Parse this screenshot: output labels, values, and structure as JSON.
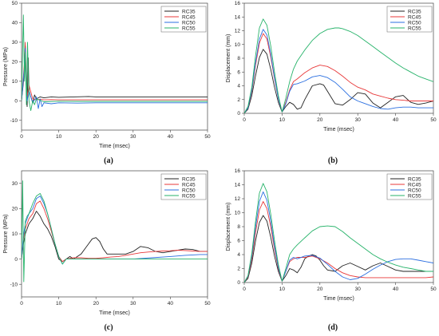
{
  "colors": {
    "RC35": "#222222",
    "RC45": "#e8393a",
    "RC50": "#2b6fe0",
    "RC55": "#27b36a"
  },
  "chart_data": [
    {
      "panel_label": "(a)",
      "type": "line",
      "xlabel": "Time (msec)",
      "ylabel": "Pressure (MPa)",
      "xlim": [
        0,
        50
      ],
      "ylim": [
        -15,
        50
      ],
      "xticks": [
        0,
        10,
        20,
        30,
        40,
        50
      ],
      "yticks": [
        -10,
        0,
        10,
        20,
        30,
        40,
        50
      ],
      "legend": "top-right",
      "grid": false,
      "series": [
        {
          "name": "RC35",
          "x": [
            0,
            0.8,
            1.0,
            1.2,
            1.5,
            1.8,
            2.0,
            2.5,
            3,
            3.5,
            4,
            5,
            6,
            8,
            10,
            14,
            18,
            20,
            30,
            40,
            50
          ],
          "y": [
            0,
            15,
            28,
            12,
            -3,
            22,
            5,
            2,
            -1,
            3,
            1,
            2,
            1.5,
            2,
            1.8,
            2,
            2.2,
            2,
            2,
            2,
            2
          ]
        },
        {
          "name": "RC45",
          "x": [
            0,
            0.8,
            1.0,
            1.2,
            1.5,
            2,
            3,
            4,
            5,
            6,
            8,
            10,
            15,
            20,
            30,
            40,
            50
          ],
          "y": [
            0,
            20,
            30,
            14,
            2,
            8,
            1,
            0.5,
            0.8,
            0.5,
            0.6,
            0.5,
            0.5,
            0.5,
            0.5,
            0.5,
            0.5
          ]
        },
        {
          "name": "RC50",
          "x": [
            0,
            0.8,
            1.0,
            1.2,
            1.5,
            2,
            3,
            4,
            4.5,
            5,
            5.5,
            6,
            8,
            10,
            15,
            20,
            30,
            40,
            50
          ],
          "y": [
            0,
            18,
            27,
            10,
            0,
            5,
            -1,
            2,
            -4,
            1,
            -3,
            -1,
            -1.5,
            -1,
            -1.2,
            -1,
            -1,
            -1,
            -1
          ]
        },
        {
          "name": "RC55",
          "x": [
            0,
            0.5,
            0.8,
            1.0,
            1.3,
            1.6,
            2,
            2.5,
            3,
            3.5,
            4,
            6,
            10,
            15,
            20,
            30,
            40,
            50
          ],
          "y": [
            0,
            44,
            10,
            25,
            -2,
            30,
            0,
            -5,
            0,
            -2,
            1,
            -0.5,
            -0.2,
            -0.3,
            -0.3,
            -0.3,
            -0.3,
            -0.3
          ]
        }
      ]
    },
    {
      "panel_label": "(b)",
      "type": "line",
      "xlabel": "Time (msec)",
      "ylabel": "Displacement (mm)",
      "xlim": [
        0,
        50
      ],
      "ylim": [
        0,
        16
      ],
      "xticks": [
        0,
        10,
        20,
        30,
        40,
        50
      ],
      "yticks": [
        0,
        2,
        4,
        6,
        8,
        10,
        12,
        14,
        16
      ],
      "legend": "top-right",
      "grid": false,
      "series": [
        {
          "name": "RC35",
          "x": [
            0,
            1,
            2,
            3,
            4,
            5,
            6,
            7,
            8,
            9,
            10,
            11,
            12,
            13,
            14,
            15,
            16,
            18,
            20,
            21,
            22,
            24,
            26,
            28,
            30,
            32,
            34,
            36,
            38,
            40,
            42,
            44,
            46,
            48,
            50
          ],
          "y": [
            0,
            0.6,
            2.6,
            5.5,
            8.1,
            9.3,
            8.6,
            6.4,
            3.8,
            1.6,
            0.2,
            1.0,
            1.6,
            1.3,
            0.6,
            0.8,
            2.0,
            4.0,
            4.3,
            4.1,
            3.2,
            1.4,
            1.2,
            2.0,
            3.0,
            2.8,
            1.5,
            0.8,
            1.6,
            2.4,
            2.6,
            1.6,
            1.3,
            1.5,
            1.8
          ]
        },
        {
          "name": "RC45",
          "x": [
            0,
            1,
            2,
            3,
            4,
            5,
            6,
            7,
            8,
            9,
            10,
            11,
            12,
            13,
            14,
            16,
            18,
            20,
            22,
            24,
            26,
            28,
            30,
            32,
            34,
            36,
            38,
            40,
            42,
            44,
            46,
            48,
            50
          ],
          "y": [
            0,
            0.8,
            3.2,
            7.0,
            10.2,
            11.6,
            10.8,
            8.2,
            5.0,
            2.2,
            0.2,
            1.6,
            3.4,
            4.6,
            5.0,
            5.9,
            6.6,
            7.0,
            6.8,
            6.2,
            5.4,
            4.5,
            3.8,
            3.4,
            2.8,
            2.5,
            2.2,
            2.0,
            1.9,
            1.8,
            1.8,
            1.8,
            1.8
          ]
        },
        {
          "name": "RC50",
          "x": [
            0,
            1,
            2,
            3,
            4,
            5,
            6,
            7,
            8,
            9,
            10,
            11,
            12,
            13,
            14,
            16,
            18,
            20,
            22,
            24,
            26,
            28,
            30,
            32,
            34,
            36,
            38,
            40,
            42,
            44,
            46,
            48,
            50
          ],
          "y": [
            0,
            0.8,
            3.4,
            7.4,
            10.8,
            12.2,
            11.4,
            8.6,
            5.2,
            2.2,
            0.2,
            1.4,
            3.2,
            4.2,
            4.3,
            4.7,
            5.3,
            5.5,
            5.2,
            4.5,
            3.5,
            2.4,
            1.8,
            1.4,
            1.0,
            0.7,
            0.6,
            0.8,
            0.9,
            0.9,
            0.8,
            0.8,
            0.8
          ]
        },
        {
          "name": "RC55",
          "x": [
            0,
            1,
            2,
            3,
            4,
            5,
            6,
            7,
            8,
            9,
            10,
            11,
            12,
            13,
            14,
            16,
            18,
            20,
            22,
            24,
            25,
            26,
            28,
            30,
            32,
            34,
            36,
            38,
            40,
            42,
            44,
            46,
            48,
            50
          ],
          "y": [
            0,
            1.0,
            3.8,
            8.4,
            12.4,
            13.7,
            12.8,
            9.8,
            6.0,
            2.6,
            0.2,
            2.2,
            4.6,
            6.4,
            7.6,
            9.2,
            10.6,
            11.6,
            12.2,
            12.4,
            12.4,
            12.3,
            11.9,
            11.3,
            10.5,
            9.7,
            8.9,
            8.1,
            7.3,
            6.6,
            6.0,
            5.4,
            5.0,
            4.6
          ]
        }
      ]
    },
    {
      "panel_label": "(c)",
      "type": "line",
      "xlabel": "Time (msec)",
      "ylabel": "Pressure (MPa)",
      "xlim": [
        0,
        50
      ],
      "ylim": [
        -15,
        35
      ],
      "xticks": [
        0,
        10,
        20,
        30,
        40,
        50
      ],
      "yticks": [
        -10,
        0,
        10,
        20,
        30
      ],
      "legend": "top-right",
      "grid": false,
      "series": [
        {
          "name": "RC35",
          "x": [
            0,
            0.5,
            1,
            1.5,
            2,
            3,
            4,
            5,
            6,
            7,
            8,
            9,
            10,
            11,
            12,
            13,
            14,
            15,
            16,
            17,
            18,
            19,
            20,
            21,
            22,
            23,
            24,
            26,
            28,
            30,
            32,
            34,
            36,
            38,
            40,
            42,
            44,
            46,
            48,
            50
          ],
          "y": [
            0,
            6,
            10,
            12,
            14,
            16,
            19,
            17,
            14,
            12,
            9,
            5,
            0,
            -1,
            0,
            1,
            0,
            1,
            2,
            4,
            6,
            8,
            8.5,
            7,
            4,
            2,
            2,
            2,
            2,
            3,
            5,
            4.5,
            3,
            2.5,
            3,
            3.5,
            4,
            3.8,
            3,
            3
          ]
        },
        {
          "name": "RC45",
          "x": [
            0,
            0.5,
            1,
            1.5,
            2,
            3,
            4,
            5,
            6,
            7,
            8,
            9,
            10,
            11,
            12,
            14,
            16,
            18,
            20,
            22,
            24,
            26,
            28,
            30,
            32,
            34,
            36,
            38,
            40,
            42,
            44,
            46,
            48,
            50
          ],
          "y": [
            0,
            8,
            12,
            14,
            16,
            18,
            22,
            23,
            20,
            16,
            11,
            6,
            1,
            -1,
            0,
            0.5,
            0.5,
            0.3,
            0.3,
            0.5,
            0.8,
            1,
            1.5,
            2,
            2.5,
            2.8,
            3,
            3.2,
            3.3,
            3.5,
            3.4,
            3.2,
            3.0,
            3.0
          ]
        },
        {
          "name": "RC50",
          "x": [
            0,
            0.5,
            1,
            1.5,
            2,
            3,
            4,
            5,
            6,
            7,
            8,
            9,
            10,
            11,
            12,
            14,
            16,
            20,
            25,
            30,
            35,
            40,
            44,
            48,
            50
          ],
          "y": [
            0,
            9,
            14,
            16,
            18,
            20,
            24,
            25,
            22,
            18,
            12,
            6,
            1,
            -2,
            0,
            0,
            0,
            0,
            0,
            0,
            0.5,
            1.0,
            1.5,
            1.8,
            1.8
          ]
        },
        {
          "name": "RC55",
          "x": [
            0,
            0.3,
            0.6,
            1,
            1.5,
            2,
            3,
            4,
            5,
            6,
            7,
            8,
            9,
            10,
            11,
            12,
            14,
            16,
            20,
            30,
            40,
            50
          ],
          "y": [
            0,
            31,
            -9,
            15,
            17,
            18,
            22,
            25,
            26,
            23,
            18,
            12,
            6,
            1,
            -2,
            0,
            0,
            0,
            0,
            0,
            0,
            0
          ]
        }
      ]
    },
    {
      "panel_label": "(d)",
      "type": "line",
      "xlabel": "Time (msec)",
      "ylabel": "Displacement (mm)",
      "xlim": [
        0,
        50
      ],
      "ylim": [
        0,
        16
      ],
      "xticks": [
        0,
        10,
        20,
        30,
        40,
        50
      ],
      "yticks": [
        0,
        2,
        4,
        6,
        8,
        10,
        12,
        14,
        16
      ],
      "legend": "top-right",
      "grid": false,
      "series": [
        {
          "name": "RC35",
          "x": [
            0,
            1,
            2,
            3,
            4,
            5,
            6,
            7,
            8,
            9,
            10,
            11,
            12,
            13,
            14,
            15,
            16,
            17,
            18,
            19,
            20,
            21,
            22,
            24,
            26,
            28,
            30,
            32,
            34,
            36,
            38,
            40,
            42,
            44,
            46,
            48,
            50
          ],
          "y": [
            0,
            0.6,
            2.8,
            6.0,
            8.6,
            9.6,
            8.8,
            6.5,
            3.8,
            1.6,
            0.2,
            1.0,
            2.0,
            1.8,
            1.4,
            2.2,
            3.4,
            3.8,
            4.0,
            3.8,
            3.2,
            2.4,
            1.8,
            1.6,
            2.4,
            2.8,
            2.3,
            1.8,
            2.4,
            2.8,
            2.3,
            1.8,
            1.6,
            1.6,
            1.6,
            1.6,
            1.6
          ]
        },
        {
          "name": "RC45",
          "x": [
            0,
            1,
            2,
            3,
            4,
            5,
            6,
            7,
            8,
            9,
            10,
            11,
            12,
            13,
            14,
            16,
            18,
            20,
            22,
            24,
            26,
            28,
            30,
            32,
            34,
            36,
            38,
            40,
            42,
            44,
            46,
            48,
            50
          ],
          "y": [
            0,
            0.8,
            3.4,
            7.2,
            10.4,
            11.6,
            10.6,
            8.0,
            4.8,
            2.0,
            0.2,
            1.6,
            3.0,
            3.4,
            3.6,
            3.6,
            3.8,
            3.4,
            2.8,
            2.0,
            1.4,
            1.0,
            0.8,
            0.7,
            0.7,
            0.7,
            0.7,
            0.7,
            0.7,
            0.7,
            0.7,
            0.7,
            0.8
          ]
        },
        {
          "name": "RC50",
          "x": [
            0,
            1,
            2,
            3,
            4,
            5,
            6,
            7,
            8,
            9,
            10,
            11,
            12,
            13,
            14,
            16,
            18,
            20,
            22,
            24,
            26,
            28,
            30,
            32,
            34,
            36,
            38,
            40,
            42,
            44,
            46,
            48,
            50
          ],
          "y": [
            0,
            0.9,
            3.8,
            8.0,
            11.6,
            13.0,
            11.8,
            8.8,
            5.2,
            2.2,
            0.2,
            1.6,
            3.2,
            3.6,
            3.4,
            3.8,
            3.9,
            3.5,
            2.6,
            1.6,
            0.8,
            0.4,
            0.6,
            1.2,
            1.9,
            2.5,
            3.0,
            3.3,
            3.4,
            3.4,
            3.2,
            3.0,
            2.8
          ]
        },
        {
          "name": "RC55",
          "x": [
            0,
            1,
            2,
            3,
            4,
            5,
            6,
            7,
            8,
            9,
            10,
            11,
            12,
            13,
            14,
            16,
            18,
            20,
            22,
            24,
            26,
            28,
            30,
            32,
            34,
            36,
            38,
            40,
            42,
            44,
            46,
            48,
            50
          ],
          "y": [
            0,
            1.0,
            4.2,
            8.8,
            12.8,
            14.2,
            13.0,
            9.8,
            6.0,
            2.6,
            0.2,
            2.0,
            4.0,
            4.8,
            5.4,
            6.4,
            7.4,
            8.0,
            8.1,
            8.0,
            7.3,
            6.4,
            5.6,
            4.8,
            4.0,
            3.4,
            2.9,
            2.5,
            2.2,
            2.0,
            1.8,
            1.6,
            1.6
          ]
        }
      ]
    }
  ]
}
